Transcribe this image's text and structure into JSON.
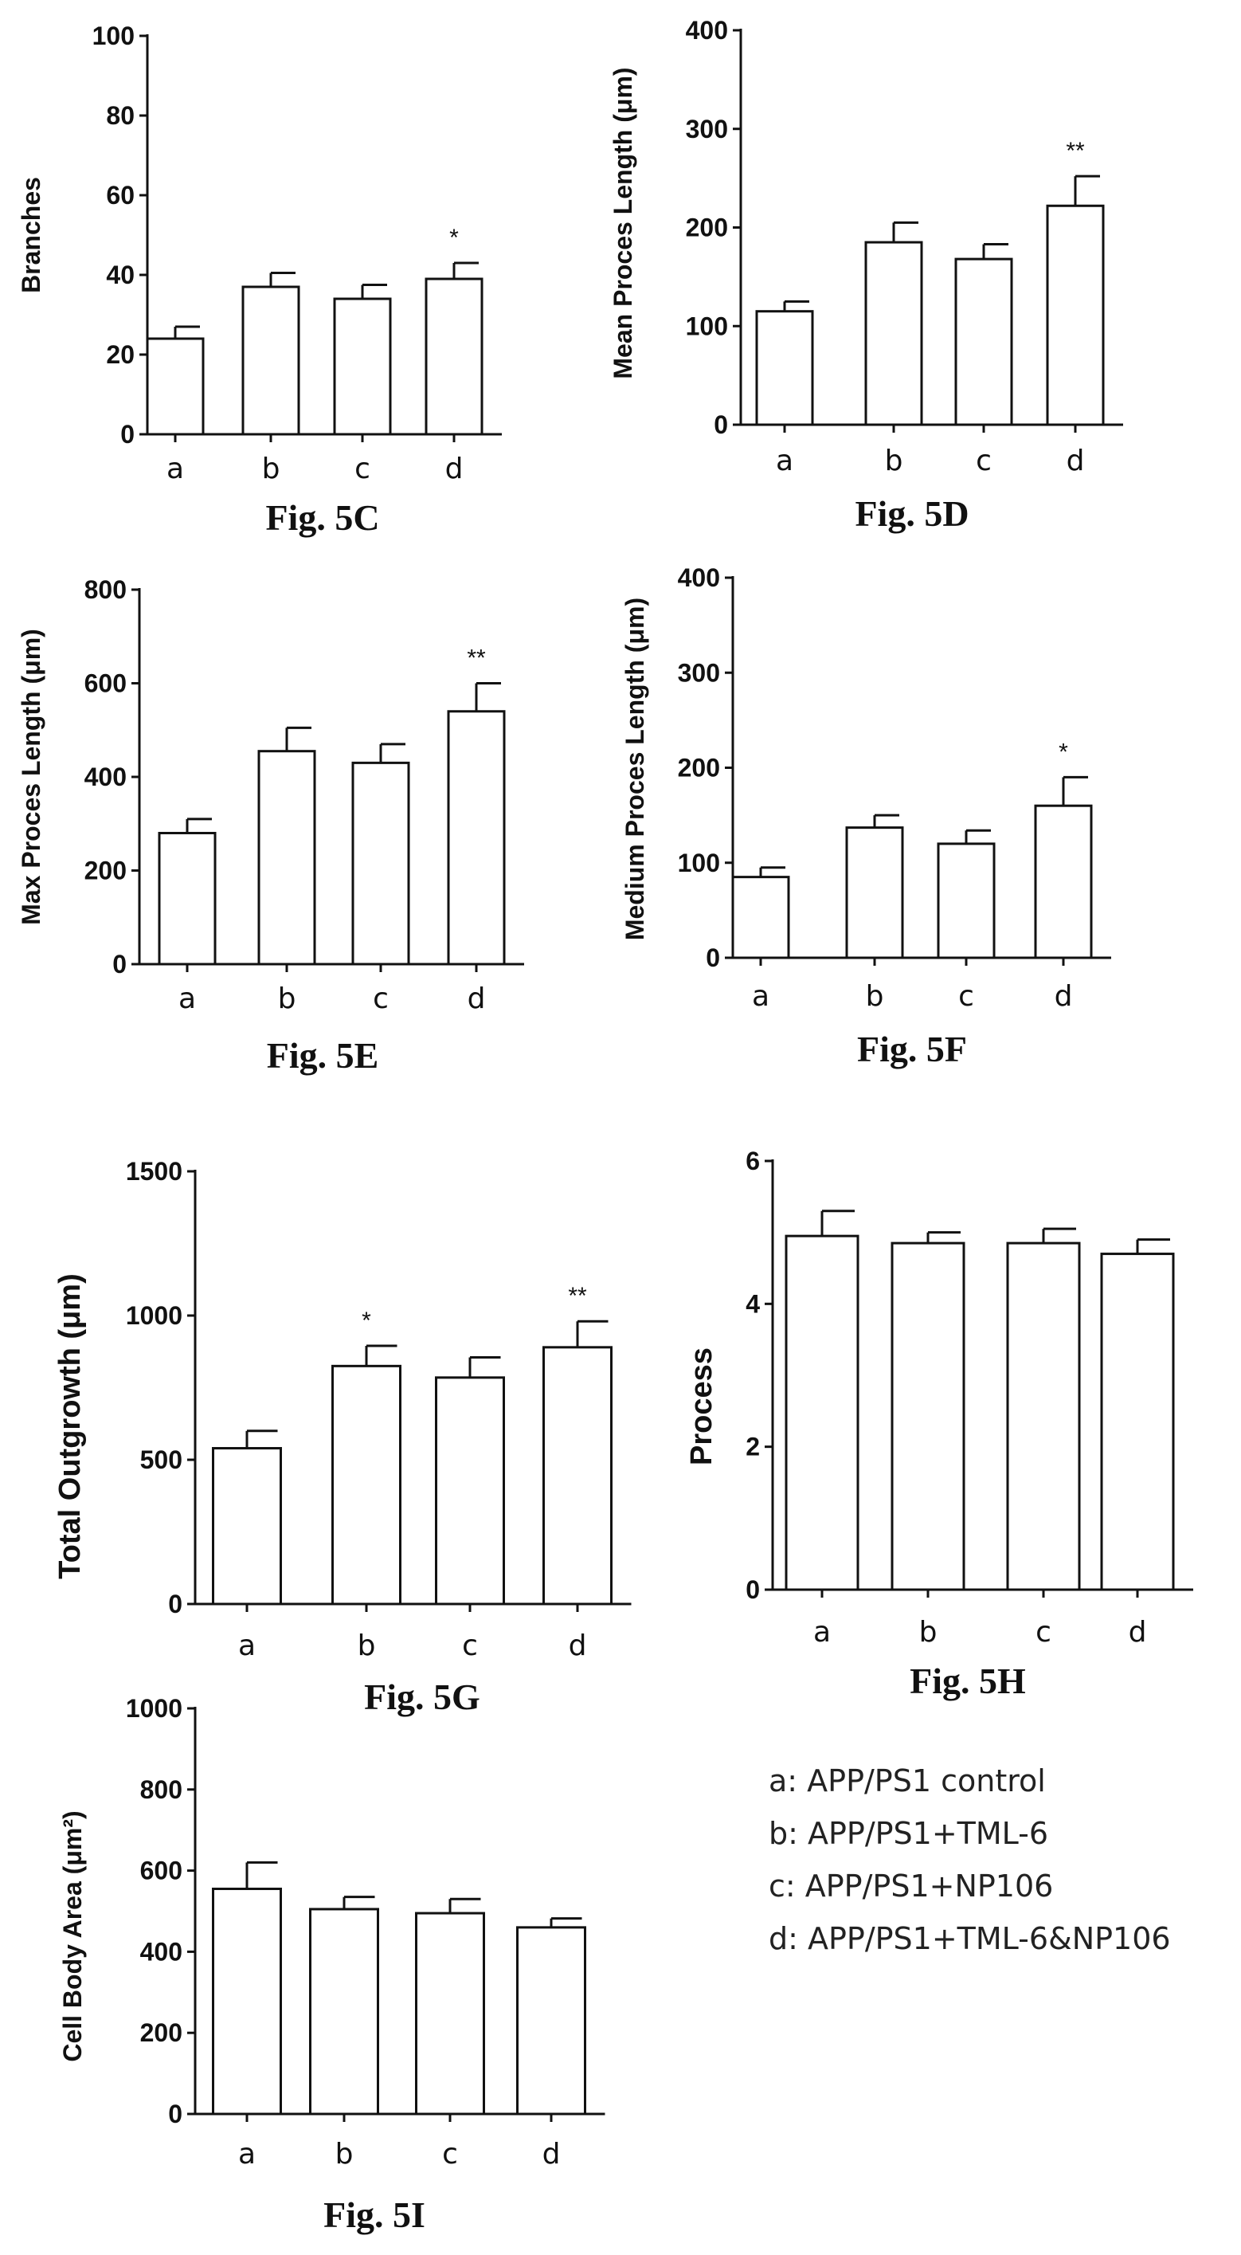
{
  "legend": [
    "a: APP/PS1 control",
    "b: APP/PS1+TML-6",
    "c: APP/PS1+NP106",
    "d: APP/PS1+TML-6&NP106"
  ],
  "chart_data": [
    {
      "id": "5C",
      "type": "bar",
      "caption": "Fig. 5C",
      "categories": [
        "a",
        "b",
        "c",
        "d"
      ],
      "values": [
        24,
        37,
        34,
        39
      ],
      "errors": [
        3,
        3.5,
        3.5,
        4
      ],
      "significance": [
        "",
        "",
        "",
        "*"
      ],
      "ylabel": "Branches",
      "ylim": [
        0,
        100
      ],
      "yticks": [
        0,
        20,
        40,
        60,
        80,
        100
      ]
    },
    {
      "id": "5D",
      "type": "bar",
      "caption": "Fig. 5D",
      "categories": [
        "a",
        "b",
        "c",
        "d"
      ],
      "values": [
        115,
        185,
        168,
        222
      ],
      "errors": [
        10,
        20,
        15,
        30
      ],
      "significance": [
        "",
        "",
        "",
        "**"
      ],
      "ylabel": "Mean Proces Length (μm)",
      "ylim": [
        0,
        400
      ],
      "yticks": [
        0,
        100,
        200,
        300,
        400
      ]
    },
    {
      "id": "5E",
      "type": "bar",
      "caption": "Fig. 5E",
      "categories": [
        "a",
        "b",
        "c",
        "d"
      ],
      "values": [
        280,
        455,
        430,
        540
      ],
      "errors": [
        30,
        50,
        40,
        60
      ],
      "significance": [
        "",
        "",
        "",
        "**"
      ],
      "ylabel": "Max Proces Length (μm)",
      "ylim": [
        0,
        800
      ],
      "yticks": [
        0,
        200,
        400,
        600,
        800
      ]
    },
    {
      "id": "5F",
      "type": "bar",
      "caption": "Fig. 5F",
      "categories": [
        "a",
        "b",
        "c",
        "d"
      ],
      "values": [
        85,
        137,
        120,
        160
      ],
      "errors": [
        10,
        13,
        14,
        30
      ],
      "significance": [
        "",
        "",
        "",
        "*"
      ],
      "ylabel": "Medium Proces Length (μm)",
      "ylim": [
        0,
        400
      ],
      "yticks": [
        0,
        100,
        200,
        300,
        400
      ]
    },
    {
      "id": "5G",
      "type": "bar",
      "caption": "Fig. 5G",
      "categories": [
        "a",
        "b",
        "c",
        "d"
      ],
      "values": [
        540,
        825,
        785,
        890
      ],
      "errors": [
        60,
        70,
        70,
        90
      ],
      "significance": [
        "",
        "*",
        "",
        "**"
      ],
      "ylabel": "Total Outgrowth (μm)",
      "ylim": [
        0,
        1500
      ],
      "yticks": [
        0,
        500,
        1000,
        1500
      ]
    },
    {
      "id": "5H",
      "type": "bar",
      "caption": "Fig. 5H",
      "categories": [
        "a",
        "b",
        "c",
        "d"
      ],
      "values": [
        4.95,
        4.85,
        4.85,
        4.7
      ],
      "errors": [
        0.35,
        0.15,
        0.2,
        0.2
      ],
      "significance": [
        "",
        "",
        "",
        ""
      ],
      "ylabel": "Process",
      "ylim": [
        0,
        6
      ],
      "yticks": [
        0,
        2,
        4,
        6
      ]
    },
    {
      "id": "5I",
      "type": "bar",
      "caption": "Fig. 5I",
      "categories": [
        "a",
        "b",
        "c",
        "d"
      ],
      "values": [
        555,
        505,
        495,
        460
      ],
      "errors": [
        65,
        30,
        35,
        22
      ],
      "significance": [
        "",
        "",
        "",
        ""
      ],
      "ylabel": "Cell Body Area (μm²)",
      "ylim": [
        0,
        1000
      ],
      "yticks": [
        0,
        200,
        400,
        600,
        800,
        1000
      ]
    }
  ]
}
